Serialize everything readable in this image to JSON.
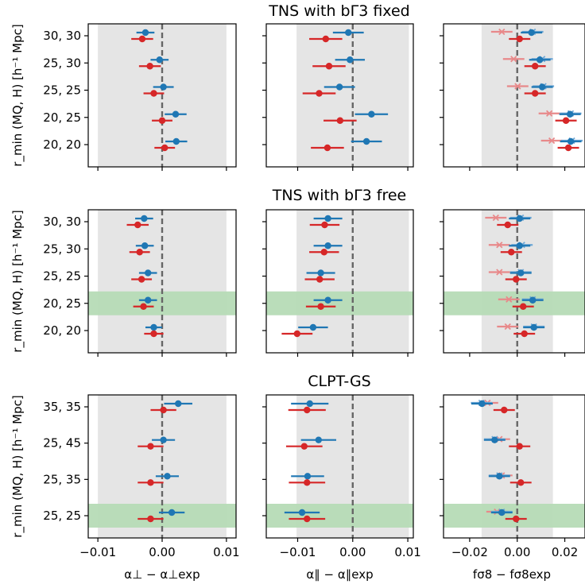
{
  "colors": {
    "blue": "#1f77b4",
    "red": "#d62728",
    "light_blue": "#6fa8d6",
    "light_red": "#e8898a",
    "band": "#e5e5e5",
    "highlight": "#b6dbb6"
  },
  "figure": {
    "y_axis_label": "r_min (MQ, H) [h⁻¹ Mpc]",
    "column_xlabels": [
      "α⊥ − α⊥exp",
      "α∥ − α∥exp",
      "fσ8 − fσ8exp"
    ]
  },
  "chart_data": [
    {
      "type": "scatter",
      "title": "TNS with bΓ3 fixed",
      "row_labels": [
        "30, 30",
        "25, 30",
        "25, 25",
        "20, 25",
        "20, 20"
      ],
      "highlight_row": null,
      "panels": [
        {
          "quantity": "α⊥ − α⊥exp",
          "xlim": [
            -0.0115,
            0.0115
          ],
          "xticks": [
            "−0.01",
            "0.00",
            "0.01"
          ],
          "band": [
            -0.01,
            0.01
          ],
          "reference_line": 0,
          "series": [
            {
              "color": "blue",
              "marker": "circle",
              "points": [
                [
                  -0.0026,
                  0.0014
                ],
                [
                  -0.0004,
                  0.0014
                ],
                [
                  0.0002,
                  0.0016
                ],
                [
                  0.0021,
                  0.0017
                ],
                [
                  0.0022,
                  0.0017
                ]
              ]
            },
            {
              "color": "red",
              "marker": "circle",
              "points": [
                [
                  -0.0031,
                  0.0017
                ],
                [
                  -0.0019,
                  0.0017
                ],
                [
                  -0.0013,
                  0.0016
                ],
                [
                  0.0,
                  0.0016
                ],
                [
                  0.0004,
                  0.0016
                ]
              ]
            }
          ]
        },
        {
          "quantity": "α∥ − α∥exp",
          "xlim": [
            -0.0157,
            0.011
          ],
          "xticks": [
            "−0.01",
            "0.00",
            "0.01"
          ],
          "band": [
            -0.0102,
            0.0102
          ],
          "reference_line": 0,
          "series": [
            {
              "color": "blue",
              "marker": "circle",
              "points": [
                [
                  -0.0008,
                  0.0028
                ],
                [
                  -0.0005,
                  0.0027
                ],
                [
                  -0.0024,
                  0.0028
                ],
                [
                  0.0034,
                  0.003
                ],
                [
                  0.0025,
                  0.0028
                ]
              ]
            },
            {
              "color": "red",
              "marker": "circle",
              "points": [
                [
                  -0.0049,
                  0.003
                ],
                [
                  -0.0043,
                  0.003
                ],
                [
                  -0.0061,
                  0.003
                ],
                [
                  -0.0023,
                  0.003
                ],
                [
                  -0.0046,
                  0.003
                ]
              ]
            }
          ]
        },
        {
          "quantity": "fσ8 − fσ8exp",
          "xlim": [
            -0.031,
            0.0285
          ],
          "xticks": [
            "−0.02",
            "0.00",
            "0.02"
          ],
          "band": [
            -0.015,
            0.015
          ],
          "reference_line": 0,
          "series": [
            {
              "color": "light_red",
              "marker": "x",
              "points": [
                [
                  -0.0065,
                  0.0045
                ],
                [
                  -0.0015,
                  0.0045
                ],
                [
                  0.0002,
                  0.0045
                ],
                [
                  0.0135,
                  0.0045
                ],
                [
                  0.0145,
                  0.0045
                ]
              ]
            },
            {
              "color": "light_blue",
              "marker": "x",
              "points": [
                [
                  0.0065,
                  0.0045
                ],
                [
                  0.0105,
                  0.0045
                ],
                [
                  0.011,
                  0.0045
                ],
                [
                  0.0225,
                  0.0045
                ],
                [
                  0.023,
                  0.0045
                ]
              ]
            },
            {
              "color": "blue",
              "marker": "circle",
              "points": [
                [
                  0.006,
                  0.0045
                ],
                [
                  0.0095,
                  0.0045
                ],
                [
                  0.0105,
                  0.0045
                ],
                [
                  0.0222,
                  0.0045
                ],
                [
                  0.0225,
                  0.0045
                ]
              ]
            },
            {
              "color": "red",
              "marker": "circle",
              "points": [
                [
                  0.001,
                  0.0045
                ],
                [
                  0.0075,
                  0.0045
                ],
                [
                  0.0075,
                  0.0045
                ],
                [
                  0.0205,
                  0.0045
                ],
                [
                  0.0215,
                  0.0045
                ]
              ]
            }
          ]
        }
      ]
    },
    {
      "type": "scatter",
      "title": "TNS with bΓ3 free",
      "row_labels": [
        "30, 30",
        "25, 30",
        "25, 25",
        "20, 25",
        "20, 20"
      ],
      "highlight_row": 3,
      "panels": [
        {
          "quantity": "α⊥ − α⊥exp",
          "xlim": [
            -0.0115,
            0.0115
          ],
          "xticks": [
            "−0.01",
            "0.00",
            "0.01"
          ],
          "band": [
            -0.01,
            0.01
          ],
          "reference_line": 0,
          "series": [
            {
              "color": "blue",
              "marker": "circle",
              "points": [
                [
                  -0.0028,
                  0.0014
                ],
                [
                  -0.0027,
                  0.0014
                ],
                [
                  -0.0022,
                  0.0014
                ],
                [
                  -0.0022,
                  0.0014
                ],
                [
                  -0.0013,
                  0.0013
                ]
              ]
            },
            {
              "color": "red",
              "marker": "circle",
              "points": [
                [
                  -0.0038,
                  0.0017
                ],
                [
                  -0.0035,
                  0.0016
                ],
                [
                  -0.0032,
                  0.0016
                ],
                [
                  -0.0029,
                  0.0016
                ],
                [
                  -0.0013,
                  0.0015
                ]
              ]
            }
          ]
        },
        {
          "quantity": "α∥ − α∥exp",
          "xlim": [
            -0.0157,
            0.011
          ],
          "xticks": [
            "−0.01",
            "0.00",
            "0.01"
          ],
          "band": [
            -0.0102,
            0.0102
          ],
          "reference_line": 0,
          "series": [
            {
              "color": "blue",
              "marker": "circle",
              "points": [
                [
                  -0.0045,
                  0.0026
                ],
                [
                  -0.0045,
                  0.0026
                ],
                [
                  -0.0058,
                  0.0026
                ],
                [
                  -0.0045,
                  0.0026
                ],
                [
                  -0.0072,
                  0.0027
                ]
              ]
            },
            {
              "color": "red",
              "marker": "circle",
              "points": [
                [
                  -0.0051,
                  0.0027
                ],
                [
                  -0.0052,
                  0.0027
                ],
                [
                  -0.006,
                  0.0027
                ],
                [
                  -0.0058,
                  0.0027
                ],
                [
                  -0.0101,
                  0.0028
                ]
              ]
            }
          ]
        },
        {
          "quantity": "fσ8 − fσ8exp",
          "xlim": [
            -0.031,
            0.0285
          ],
          "xticks": [
            "−0.02",
            "0.00",
            "0.02"
          ],
          "band": [
            -0.015,
            0.015
          ],
          "reference_line": 0,
          "series": [
            {
              "color": "light_red",
              "marker": "x",
              "points": [
                [
                  -0.009,
                  0.0045
                ],
                [
                  -0.0075,
                  0.0045
                ],
                [
                  -0.0075,
                  0.0045
                ],
                [
                  -0.0035,
                  0.0045
                ],
                [
                  -0.004,
                  0.0045
                ]
              ]
            },
            {
              "color": "light_blue",
              "marker": "x",
              "points": [
                [
                  0.0015,
                  0.0045
                ],
                [
                  0.002,
                  0.0045
                ],
                [
                  0.0015,
                  0.0045
                ],
                [
                  0.0065,
                  0.0045
                ],
                [
                  0.007,
                  0.0045
                ]
              ]
            },
            {
              "color": "blue",
              "marker": "circle",
              "points": [
                [
                  0.001,
                  0.0045
                ],
                [
                  0.001,
                  0.0045
                ],
                [
                  0.0015,
                  0.0045
                ],
                [
                  0.0065,
                  0.0045
                ],
                [
                  0.007,
                  0.0045
                ]
              ]
            },
            {
              "color": "red",
              "marker": "circle",
              "points": [
                [
                  -0.004,
                  0.0045
                ],
                [
                  -0.0025,
                  0.0045
                ],
                [
                  -0.0005,
                  0.0045
                ],
                [
                  0.0025,
                  0.0045
                ],
                [
                  0.003,
                  0.0045
                ]
              ]
            }
          ]
        }
      ]
    },
    {
      "type": "scatter",
      "title": "CLPT-GS",
      "row_labels": [
        "35, 35",
        "25, 45",
        "25, 35",
        "25, 25"
      ],
      "highlight_row": 3,
      "panels": [
        {
          "quantity": "α⊥ − α⊥exp",
          "xlim": [
            -0.0115,
            0.0115
          ],
          "xticks": [
            "−0.01",
            "0.00",
            "0.01"
          ],
          "band": [
            -0.01,
            0.01
          ],
          "reference_line": 0,
          "series": [
            {
              "color": "blue",
              "marker": "circle",
              "points": [
                [
                  0.0025,
                  0.0022
                ],
                [
                  0.0002,
                  0.0018
                ],
                [
                  0.0008,
                  0.0018
                ],
                [
                  0.0015,
                  0.002
                ]
              ]
            },
            {
              "color": "red",
              "marker": "circle",
              "points": [
                [
                  0.0002,
                  0.002
                ],
                [
                  -0.0018,
                  0.002
                ],
                [
                  -0.0018,
                  0.002
                ],
                [
                  -0.0018,
                  0.002
                ]
              ]
            }
          ]
        },
        {
          "quantity": "α∥ − α∥exp",
          "xlim": [
            -0.0157,
            0.011
          ],
          "xticks": [
            "−0.01",
            "0.00",
            "0.01"
          ],
          "band": [
            -0.0102,
            0.0102
          ],
          "reference_line": 0,
          "series": [
            {
              "color": "blue",
              "marker": "circle",
              "points": [
                [
                  -0.0078,
                  0.0034
                ],
                [
                  -0.0062,
                  0.0032
                ],
                [
                  -0.0082,
                  0.003
                ],
                [
                  -0.0092,
                  0.0032
                ]
              ]
            },
            {
              "color": "red",
              "marker": "circle",
              "points": [
                [
                  -0.0083,
                  0.0034
                ],
                [
                  -0.0088,
                  0.0033
                ],
                [
                  -0.0083,
                  0.0033
                ],
                [
                  -0.0083,
                  0.0033
                ]
              ]
            }
          ]
        },
        {
          "quantity": "fσ8 − fσ8exp",
          "xlim": [
            -0.031,
            0.0285
          ],
          "xticks": [
            "−0.02",
            "0.00",
            "0.02"
          ],
          "band": [
            -0.015,
            0.015
          ],
          "reference_line": 0,
          "series": [
            {
              "color": "light_red",
              "marker": "x",
              "points": [
                [
                  -0.0125,
                  0.0045
                ],
                [
                  -0.0075,
                  0.0045
                ],
                [
                  -0.0065,
                  0.0045
                ],
                [
                  -0.0085,
                  0.0045
                ]
              ]
            },
            {
              "color": "light_blue",
              "marker": "x",
              "points": [
                [
                  -0.015,
                  0.0045
                ],
                [
                  -0.0095,
                  0.0045
                ],
                [
                  -0.0075,
                  0.0045
                ],
                [
                  -0.0065,
                  0.0045
                ]
              ]
            },
            {
              "color": "blue",
              "marker": "circle",
              "points": [
                [
                  -0.0148,
                  0.0045
                ],
                [
                  -0.0095,
                  0.0045
                ],
                [
                  -0.0075,
                  0.0045
                ],
                [
                  -0.0065,
                  0.0045
                ]
              ]
            },
            {
              "color": "red",
              "marker": "circle",
              "points": [
                [
                  -0.0055,
                  0.0045
                ],
                [
                  0.001,
                  0.0045
                ],
                [
                  0.0015,
                  0.0045
                ],
                [
                  -0.0005,
                  0.0045
                ]
              ]
            }
          ]
        }
      ]
    }
  ]
}
